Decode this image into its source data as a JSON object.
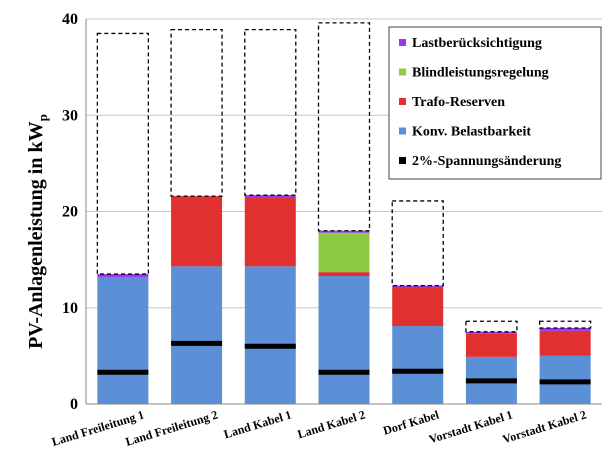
{
  "chart_data": {
    "type": "bar",
    "stacked": true,
    "title": "",
    "xlabel": "",
    "ylabel": "PV-Anlagenleistung in kW",
    "ylabel_subscript": "p",
    "ylim": [
      0,
      40
    ],
    "yticks": [
      "0",
      "10",
      "20",
      "30",
      "40"
    ],
    "grid": true,
    "legend_position": "top-right",
    "categories": [
      "Land Freileitung 1",
      "Land Freileitung 2",
      "Land Kabel 1",
      "Land Kabel 2",
      "Dorf Kabel",
      "Vorstadt Kabel 1",
      "Vorstadt Kabel 2"
    ],
    "series": [
      {
        "name": "Konv. Belastbarkeit",
        "color": "#5b8fd6",
        "values": [
          13.2,
          14.3,
          14.3,
          13.3,
          8.1,
          4.9,
          5.0
        ]
      },
      {
        "name": "Trafo-Reserven",
        "color": "#e03030",
        "values": [
          0.0,
          7.3,
          7.2,
          0.4,
          4.0,
          2.4,
          2.6
        ]
      },
      {
        "name": "Blindleistungsregelung",
        "color": "#8ccc44",
        "values": [
          0.0,
          0.0,
          0.0,
          4.1,
          0.0,
          0.0,
          0.0
        ]
      },
      {
        "name": "Lastberücksichtigung",
        "color": "#9933ee",
        "values": [
          0.3,
          0.0,
          0.2,
          0.2,
          0.2,
          0.2,
          0.3
        ]
      }
    ],
    "dashed_totals": [
      38.5,
      38.9,
      38.9,
      39.6,
      21.1,
      8.6,
      8.6
    ],
    "marker_series": {
      "name": "2%-Spannungsänderung",
      "color": "#000000",
      "values": [
        3.3,
        6.3,
        6.0,
        3.3,
        3.4,
        2.4,
        2.3
      ]
    },
    "legend": [
      {
        "label": "Lastberücksichtigung",
        "color": "#9933ee"
      },
      {
        "label": "Blindleistungsregelung",
        "color": "#8ccc44"
      },
      {
        "label": "Trafo-Reserven",
        "color": "#e03030"
      },
      {
        "label": "Konv. Belastbarkeit",
        "color": "#5b8fd6"
      },
      {
        "label": "2%-Spannungsänderung",
        "color": "#000000"
      }
    ]
  }
}
